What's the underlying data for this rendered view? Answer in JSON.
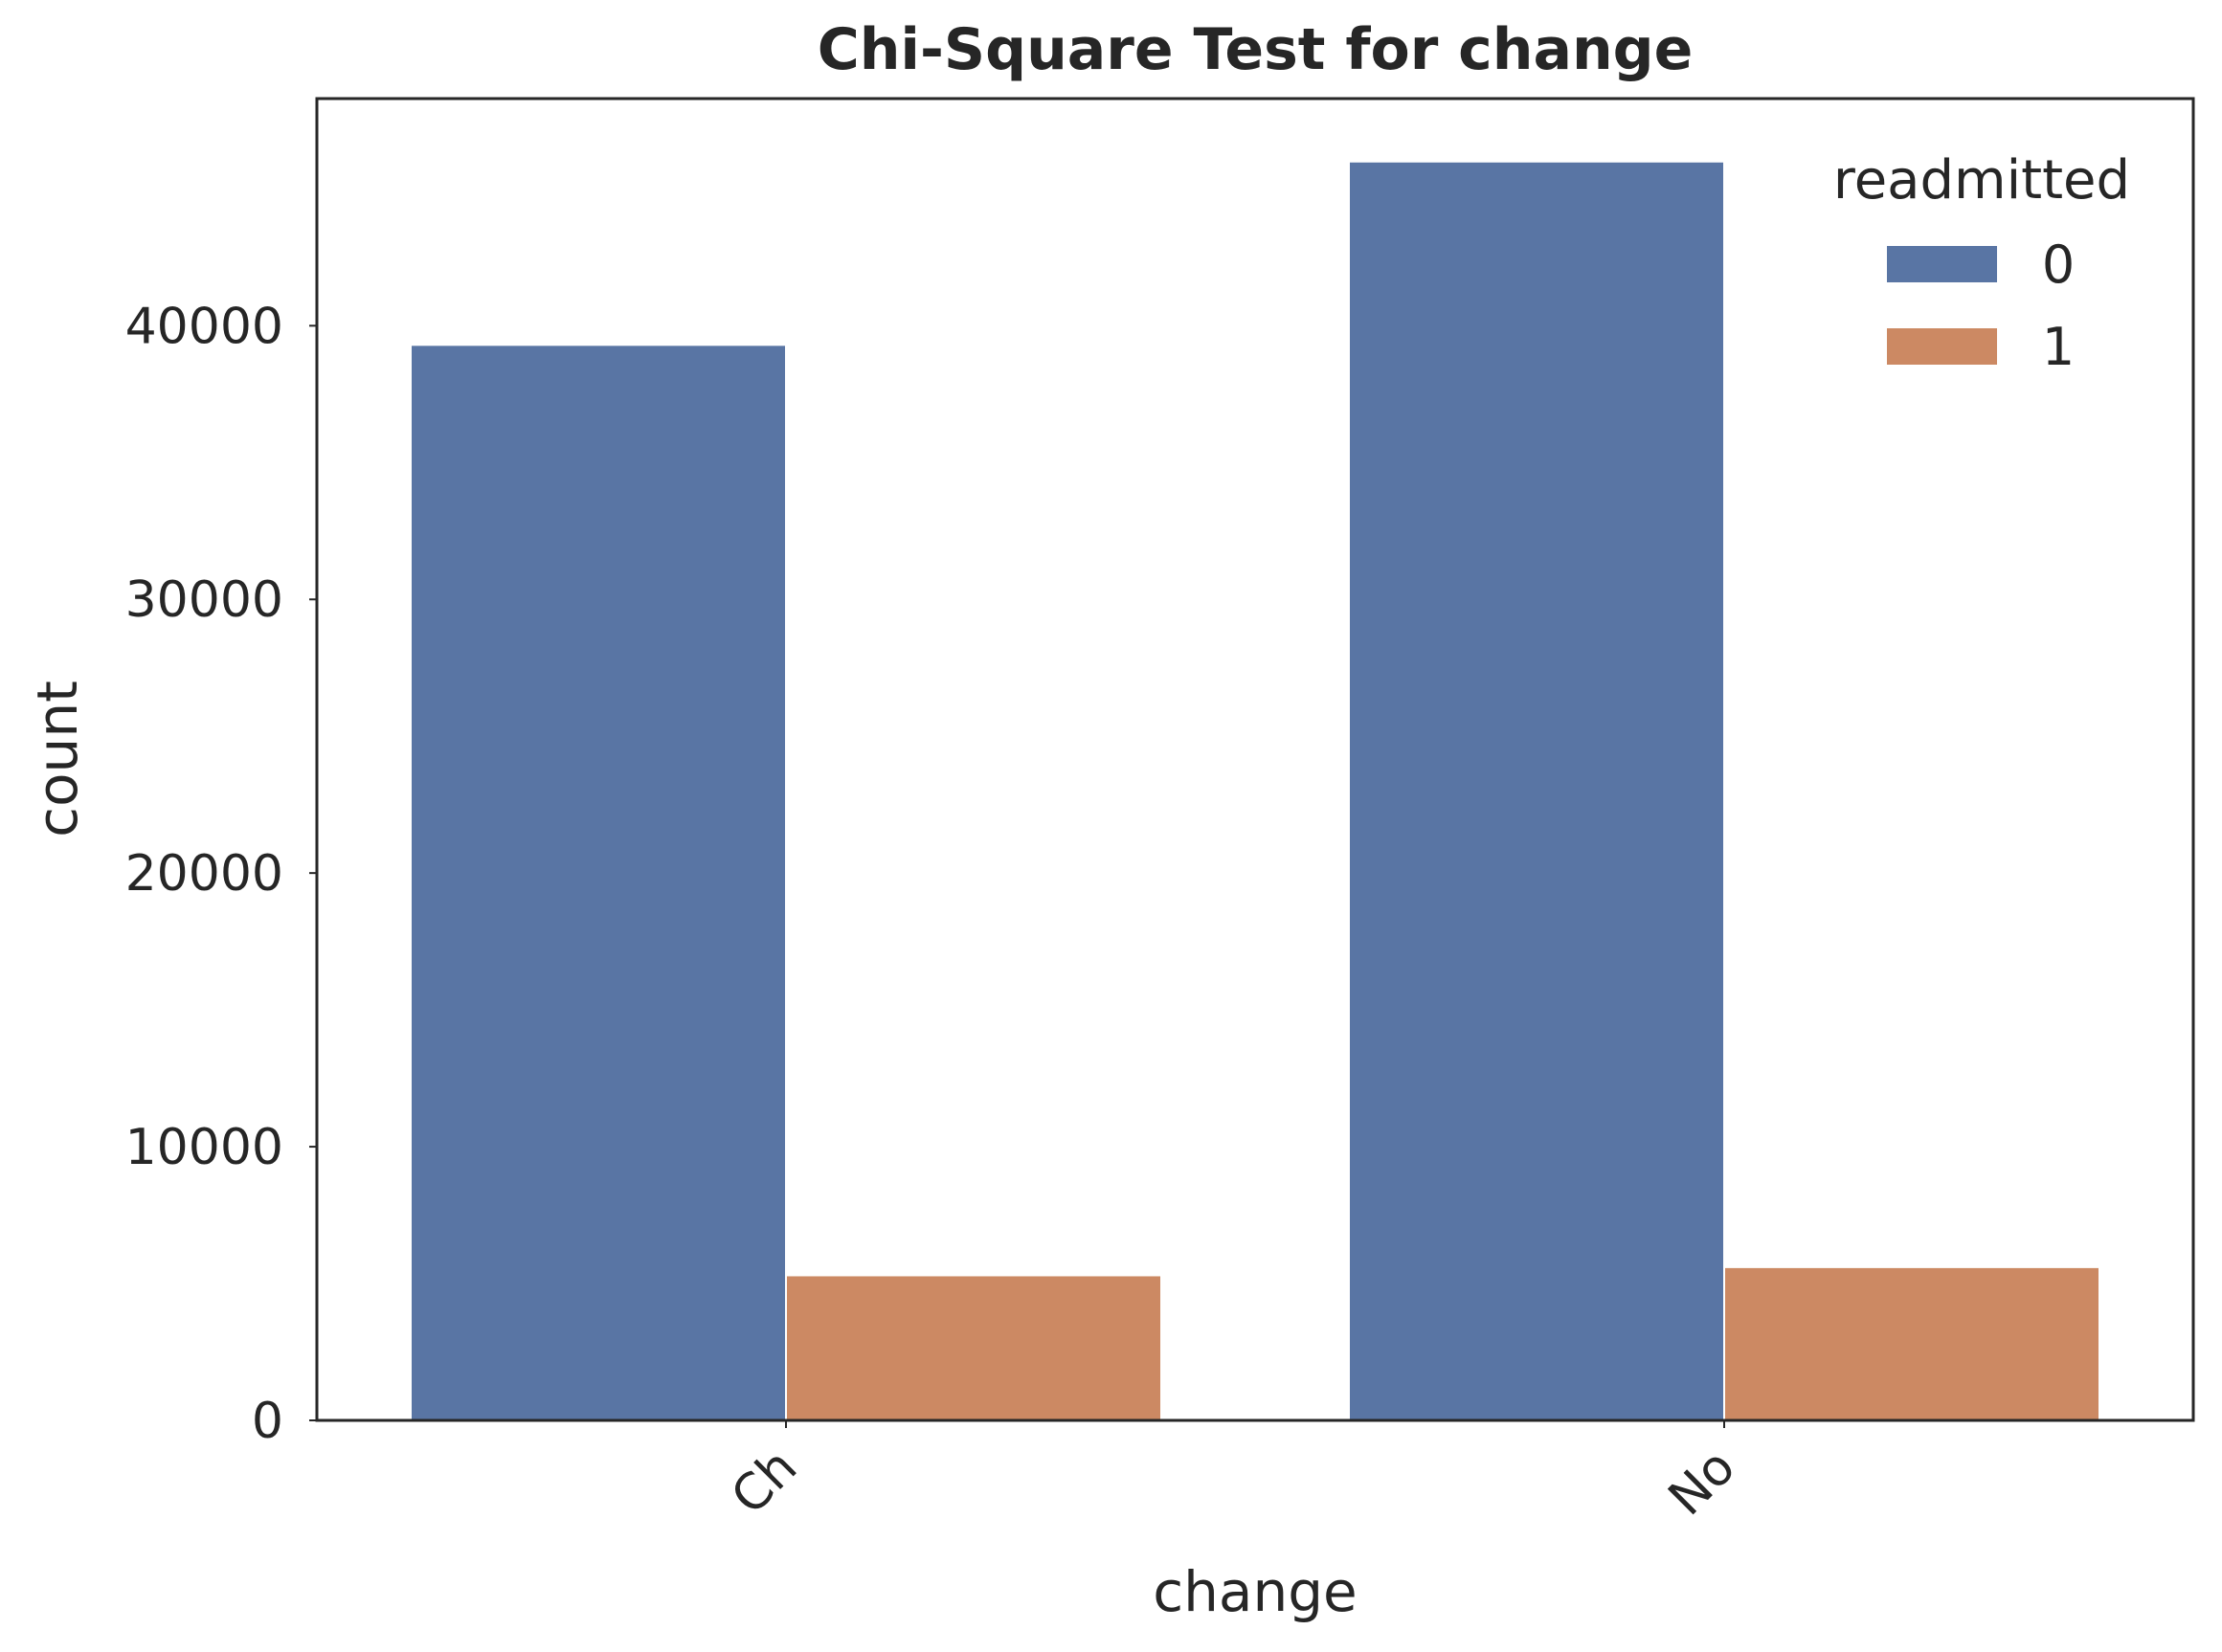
{
  "chart_data": {
    "type": "bar",
    "title": "Chi-Square Test for change",
    "xlabel": "change",
    "ylabel": "count",
    "categories": [
      "Ch",
      "No"
    ],
    "ylim": [
      0,
      48300
    ],
    "yticks": [
      0,
      10000,
      20000,
      30000,
      40000
    ],
    "ytick_labels": [
      "0",
      "10000",
      "20000",
      "30000",
      "40000"
    ],
    "grid": false,
    "legend": {
      "title": "readmitted",
      "position": "top-right"
    },
    "series": [
      {
        "name": "0",
        "color": "#5975a4",
        "values": [
          39300,
          46000
        ]
      },
      {
        "name": "1",
        "color": "#cc8963",
        "values": [
          5300,
          5600
        ]
      }
    ]
  }
}
